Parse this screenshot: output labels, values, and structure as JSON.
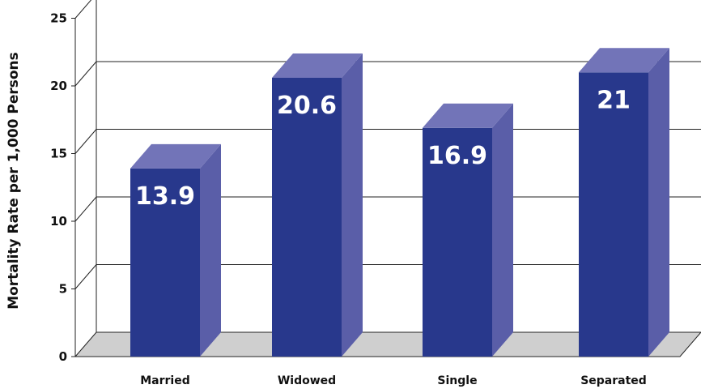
{
  "chart_data": {
    "type": "bar",
    "style": "3d-column",
    "categories": [
      "Married",
      "Widowed",
      "Single",
      "Separated"
    ],
    "values": [
      13.9,
      20.6,
      16.9,
      21
    ],
    "data_labels": [
      "13.9",
      "20.6",
      "16.9",
      "21"
    ],
    "title": "",
    "xlabel": "",
    "ylabel": "Mortality Rate per 1,000 Persons",
    "ylim": [
      0,
      25
    ],
    "yticks": [
      "0",
      "5",
      "10",
      "15",
      "20",
      "25"
    ],
    "grid": true,
    "legend": "none",
    "colors": {
      "bar_front": "#28388c",
      "bar_side": "#5a5ea8",
      "bar_top": "#7274b8",
      "floor": "#cfcfcf"
    }
  }
}
